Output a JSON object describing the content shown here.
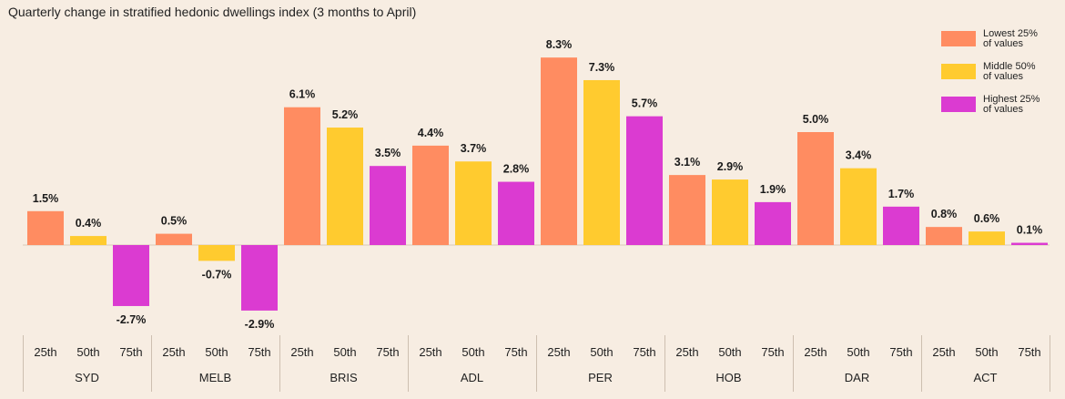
{
  "chart_data": {
    "type": "bar",
    "title": "Quarterly change in stratified hedonic dwellings index (3 months to April)",
    "groups": [
      "SYD",
      "MELB",
      "BRIS",
      "ADL",
      "PER",
      "HOB",
      "DAR",
      "ACT"
    ],
    "sub_categories": [
      "25th",
      "50th",
      "75th"
    ],
    "series": [
      {
        "name": "Lowest 25% of values",
        "color": "#ff8c61",
        "values": [
          1.5,
          0.5,
          6.1,
          4.4,
          8.3,
          3.1,
          5.0,
          0.8
        ]
      },
      {
        "name": "Middle 50% of values",
        "color": "#ffcb2f",
        "values": [
          0.4,
          -0.7,
          5.2,
          3.7,
          7.3,
          2.9,
          3.4,
          0.6
        ]
      },
      {
        "name": "Highest 25% of values",
        "color": "#db3bd1",
        "values": [
          -2.7,
          -2.9,
          3.5,
          2.8,
          5.7,
          1.9,
          1.7,
          0.1
        ]
      }
    ],
    "value_format": "percent_1dp",
    "ylim": [
      -2.9,
      8.3
    ],
    "grid": false,
    "legend_position": "top-right",
    "legend": [
      {
        "line1": "Lowest 25%",
        "line2": "of values",
        "color": "#ff8c61"
      },
      {
        "line1": "Middle 50%",
        "line2": "of values",
        "color": "#ffcb2f"
      },
      {
        "line1": "Highest 25%",
        "line2": "of values",
        "color": "#db3bd1"
      }
    ]
  }
}
